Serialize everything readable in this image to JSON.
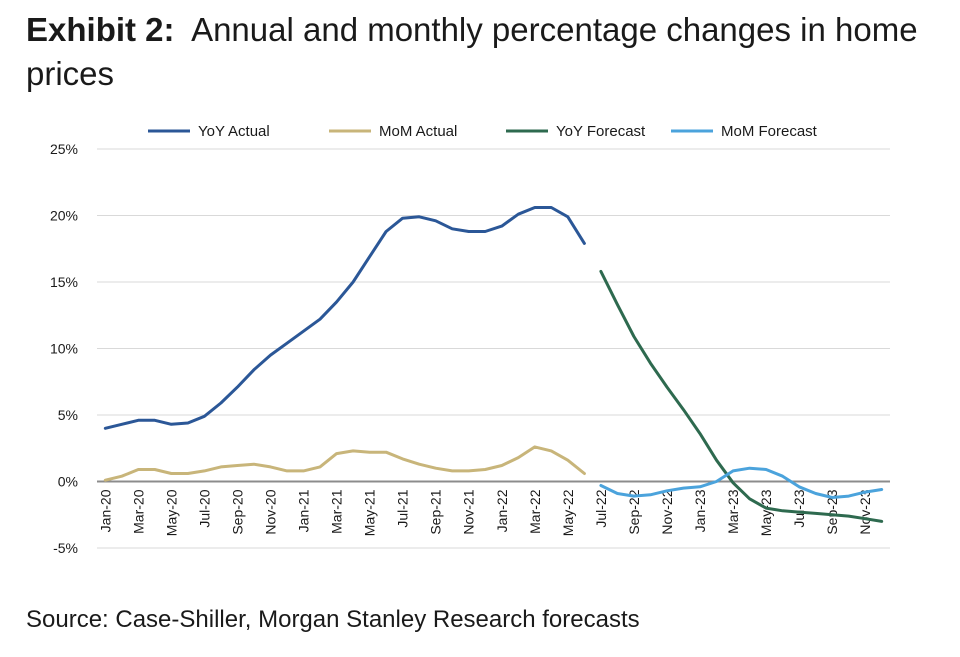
{
  "title": {
    "prefix": "Exhibit 2:",
    "text": "Annual and monthly percentage changes in home prices"
  },
  "source": "Source: Case-Shiller, Morgan Stanley Research forecasts",
  "chart_data": {
    "type": "line",
    "grid": true,
    "legend_position": "top",
    "ylim": [
      -5,
      25
    ],
    "y_ticks": [
      25,
      20,
      15,
      10,
      5,
      0,
      -5
    ],
    "y_tick_labels": [
      "25%",
      "20%",
      "15%",
      "10%",
      "5%",
      "0%",
      "-5%"
    ],
    "x_start": "2020-01",
    "x_end": "2023-12",
    "x_tick_labels": [
      "Jan-20",
      "Mar-20",
      "May-20",
      "Jul-20",
      "Sep-20",
      "Nov-20",
      "Jan-21",
      "Mar-21",
      "May-21",
      "Jul-21",
      "Sep-21",
      "Nov-21",
      "Jan-22",
      "Mar-22",
      "May-22",
      "Jul-22",
      "Sep-22",
      "Nov-22",
      "Jan-23",
      "Mar-23",
      "May-23",
      "Jul-23",
      "Sep-23",
      "Nov-23"
    ],
    "series": [
      {
        "name": "YoY Actual",
        "color": "#2B5797",
        "x": [
          "2020-01",
          "2020-02",
          "2020-03",
          "2020-04",
          "2020-05",
          "2020-06",
          "2020-07",
          "2020-08",
          "2020-09",
          "2020-10",
          "2020-11",
          "2020-12",
          "2021-01",
          "2021-02",
          "2021-03",
          "2021-04",
          "2021-05",
          "2021-06",
          "2021-07",
          "2021-08",
          "2021-09",
          "2021-10",
          "2021-11",
          "2021-12",
          "2022-01",
          "2022-02",
          "2022-03",
          "2022-04",
          "2022-05",
          "2022-06"
        ],
        "values": [
          4.0,
          4.3,
          4.6,
          4.6,
          4.3,
          4.4,
          4.9,
          5.9,
          7.1,
          8.4,
          9.5,
          10.4,
          11.3,
          12.2,
          13.5,
          15.0,
          16.9,
          18.8,
          19.8,
          19.9,
          19.6,
          19.0,
          18.8,
          18.8,
          19.2,
          20.1,
          20.6,
          20.6,
          19.9,
          17.9
        ]
      },
      {
        "name": "MoM Actual",
        "color": "#C8B57A",
        "x": [
          "2020-01",
          "2020-02",
          "2020-03",
          "2020-04",
          "2020-05",
          "2020-06",
          "2020-07",
          "2020-08",
          "2020-09",
          "2020-10",
          "2020-11",
          "2020-12",
          "2021-01",
          "2021-02",
          "2021-03",
          "2021-04",
          "2021-05",
          "2021-06",
          "2021-07",
          "2021-08",
          "2021-09",
          "2021-10",
          "2021-11",
          "2021-12",
          "2022-01",
          "2022-02",
          "2022-03",
          "2022-04",
          "2022-05",
          "2022-06"
        ],
        "values": [
          0.1,
          0.4,
          0.9,
          0.9,
          0.6,
          0.6,
          0.8,
          1.1,
          1.2,
          1.3,
          1.1,
          0.8,
          0.8,
          1.1,
          2.1,
          2.3,
          2.2,
          2.2,
          1.7,
          1.3,
          1.0,
          0.8,
          0.8,
          0.9,
          1.2,
          1.8,
          2.6,
          2.3,
          1.6,
          0.6
        ]
      },
      {
        "name": "YoY Forecast",
        "color": "#2E6A4F",
        "x": [
          "2022-07",
          "2022-08",
          "2022-09",
          "2022-10",
          "2022-11",
          "2022-12",
          "2023-01",
          "2023-02",
          "2023-03",
          "2023-04",
          "2023-05",
          "2023-06",
          "2023-07",
          "2023-08",
          "2023-09",
          "2023-10",
          "2023-11",
          "2023-12"
        ],
        "values": [
          15.8,
          13.3,
          10.9,
          8.9,
          7.1,
          5.4,
          3.6,
          1.6,
          -0.1,
          -1.3,
          -2.0,
          -2.2,
          -2.3,
          -2.4,
          -2.5,
          -2.6,
          -2.8,
          -3.0
        ]
      },
      {
        "name": "MoM Forecast",
        "color": "#4BA3DC",
        "x": [
          "2022-07",
          "2022-08",
          "2022-09",
          "2022-10",
          "2022-11",
          "2022-12",
          "2023-01",
          "2023-02",
          "2023-03",
          "2023-04",
          "2023-05",
          "2023-06",
          "2023-07",
          "2023-08",
          "2023-09",
          "2023-10",
          "2023-11",
          "2023-12"
        ],
        "values": [
          -0.3,
          -0.9,
          -1.1,
          -1.0,
          -0.7,
          -0.5,
          -0.4,
          0.0,
          0.8,
          1.0,
          0.9,
          0.4,
          -0.4,
          -0.9,
          -1.2,
          -1.1,
          -0.8,
          -0.6
        ]
      }
    ]
  }
}
